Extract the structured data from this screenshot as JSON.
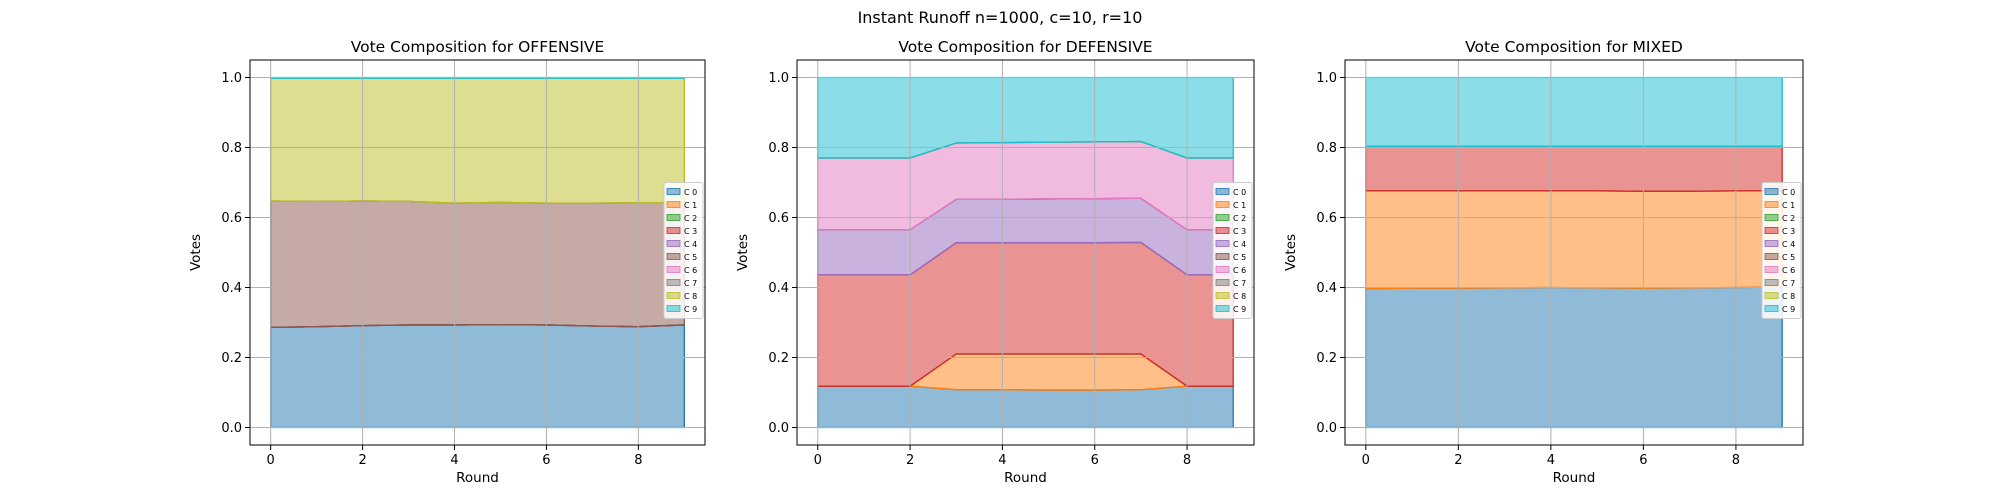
{
  "suptitle": "Instant Runoff n=1000, c=10, r=10",
  "candidate_colors": [
    "#1f77b4",
    "#ff7f0e",
    "#2ca02c",
    "#d62728",
    "#9467bd",
    "#8c564b",
    "#e377c2",
    "#7f7f7f",
    "#bcbd22",
    "#17becf"
  ],
  "chart_data": [
    {
      "type": "area",
      "title": "Vote Composition for OFFENSIVE",
      "xlabel": "Round",
      "ylabel": "Votes",
      "xlim": [
        -0.45,
        9.45
      ],
      "ylim": [
        -0.05,
        1.05
      ],
      "x_ticks": [
        0,
        2,
        4,
        6,
        8
      ],
      "y_ticks": [
        0.0,
        0.2,
        0.4,
        0.6,
        0.8,
        1.0
      ],
      "grid": true,
      "legend_position": "center-right",
      "x": [
        0,
        1,
        2,
        3,
        4,
        5,
        6,
        7,
        8,
        9
      ],
      "series": [
        {
          "name": "C 0",
          "values": [
            0.286,
            0.288,
            0.291,
            0.293,
            0.293,
            0.294,
            0.293,
            0.29,
            0.288,
            0.293
          ]
        },
        {
          "name": "C 1",
          "values": [
            0,
            0,
            0,
            0,
            0,
            0,
            0,
            0,
            0,
            0
          ]
        },
        {
          "name": "C 2",
          "values": [
            0,
            0,
            0,
            0,
            0,
            0,
            0,
            0,
            0,
            0
          ]
        },
        {
          "name": "C 3",
          "values": [
            0,
            0,
            0,
            0,
            0,
            0,
            0,
            0,
            0,
            0
          ]
        },
        {
          "name": "C 4",
          "values": [
            0,
            0,
            0,
            0,
            0,
            0,
            0,
            0,
            0,
            0
          ]
        },
        {
          "name": "C 5",
          "values": [
            0.361,
            0.358,
            0.356,
            0.353,
            0.348,
            0.349,
            0.348,
            0.351,
            0.354,
            0.349
          ]
        },
        {
          "name": "C 6",
          "values": [
            0,
            0,
            0,
            0,
            0,
            0,
            0,
            0,
            0,
            0
          ]
        },
        {
          "name": "C 7",
          "values": [
            0,
            0,
            0,
            0,
            0,
            0,
            0,
            0,
            0,
            0
          ]
        },
        {
          "name": "C 8",
          "values": [
            0.351,
            0.352,
            0.351,
            0.352,
            0.357,
            0.355,
            0.357,
            0.357,
            0.356,
            0.356
          ]
        },
        {
          "name": "C 9",
          "values": [
            0.002,
            0.002,
            0.002,
            0.002,
            0.002,
            0.002,
            0.002,
            0.002,
            0.002,
            0.002
          ]
        }
      ]
    },
    {
      "type": "area",
      "title": "Vote Composition for DEFENSIVE",
      "xlabel": "Round",
      "ylabel": "Votes",
      "xlim": [
        -0.45,
        9.45
      ],
      "ylim": [
        -0.05,
        1.05
      ],
      "x_ticks": [
        0,
        2,
        4,
        6,
        8
      ],
      "y_ticks": [
        0.0,
        0.2,
        0.4,
        0.6,
        0.8,
        1.0
      ],
      "grid": true,
      "legend_position": "center-right",
      "x": [
        0,
        1,
        2,
        3,
        4,
        5,
        6,
        7,
        8,
        9
      ],
      "series": [
        {
          "name": "C 0",
          "values": [
            0.118,
            0.118,
            0.118,
            0.108,
            0.108,
            0.107,
            0.107,
            0.108,
            0.118,
            0.118
          ]
        },
        {
          "name": "C 1",
          "values": [
            0,
            0,
            0,
            0.102,
            0.102,
            0.103,
            0.103,
            0.102,
            0,
            0
          ]
        },
        {
          "name": "C 2",
          "values": [
            0,
            0,
            0,
            0,
            0,
            0,
            0,
            0,
            0,
            0
          ]
        },
        {
          "name": "C 3",
          "values": [
            0.318,
            0.318,
            0.318,
            0.318,
            0.318,
            0.318,
            0.318,
            0.319,
            0.318,
            0.318
          ]
        },
        {
          "name": "C 4",
          "values": [
            0.129,
            0.129,
            0.129,
            0.124,
            0.124,
            0.125,
            0.126,
            0.126,
            0.129,
            0.129
          ]
        },
        {
          "name": "C 5",
          "values": [
            0,
            0,
            0,
            0,
            0,
            0,
            0,
            0,
            0,
            0
          ]
        },
        {
          "name": "C 6",
          "values": [
            0.205,
            0.205,
            0.205,
            0.161,
            0.162,
            0.162,
            0.162,
            0.162,
            0.205,
            0.205
          ]
        },
        {
          "name": "C 7",
          "values": [
            0,
            0,
            0,
            0,
            0,
            0,
            0,
            0,
            0,
            0
          ]
        },
        {
          "name": "C 8",
          "values": [
            0,
            0,
            0,
            0,
            0,
            0,
            0,
            0,
            0,
            0
          ]
        },
        {
          "name": "C 9",
          "values": [
            0.23,
            0.23,
            0.23,
            0.187,
            0.186,
            0.185,
            0.184,
            0.183,
            0.23,
            0.23
          ]
        }
      ]
    },
    {
      "type": "area",
      "title": "Vote Composition for MIXED",
      "xlabel": "Round",
      "ylabel": "Votes",
      "xlim": [
        -0.45,
        9.45
      ],
      "ylim": [
        -0.05,
        1.05
      ],
      "x_ticks": [
        0,
        2,
        4,
        6,
        8
      ],
      "y_ticks": [
        0.0,
        0.2,
        0.4,
        0.6,
        0.8,
        1.0
      ],
      "grid": true,
      "legend_position": "center-right",
      "x": [
        0,
        1,
        2,
        3,
        4,
        5,
        6,
        7,
        8,
        9
      ],
      "series": [
        {
          "name": "C 0",
          "values": [
            0.397,
            0.398,
            0.398,
            0.399,
            0.4,
            0.399,
            0.398,
            0.399,
            0.4,
            0.401
          ]
        },
        {
          "name": "C 1",
          "values": [
            0.279,
            0.278,
            0.278,
            0.277,
            0.276,
            0.277,
            0.277,
            0.276,
            0.276,
            0.275
          ]
        },
        {
          "name": "C 2",
          "values": [
            0,
            0,
            0,
            0,
            0,
            0,
            0,
            0,
            0,
            0
          ]
        },
        {
          "name": "C 3",
          "values": [
            0.127,
            0.127,
            0.127,
            0.127,
            0.127,
            0.127,
            0.128,
            0.128,
            0.127,
            0.127
          ]
        },
        {
          "name": "C 4",
          "values": [
            0,
            0,
            0,
            0,
            0,
            0,
            0,
            0,
            0,
            0
          ]
        },
        {
          "name": "C 5",
          "values": [
            0,
            0,
            0,
            0,
            0,
            0,
            0,
            0,
            0,
            0
          ]
        },
        {
          "name": "C 6",
          "values": [
            0,
            0,
            0,
            0,
            0,
            0,
            0,
            0,
            0,
            0
          ]
        },
        {
          "name": "C 7",
          "values": [
            0,
            0,
            0,
            0,
            0,
            0,
            0,
            0,
            0,
            0
          ]
        },
        {
          "name": "C 8",
          "values": [
            0,
            0,
            0,
            0,
            0,
            0,
            0,
            0,
            0,
            0
          ]
        },
        {
          "name": "C 9",
          "values": [
            0.197,
            0.197,
            0.197,
            0.197,
            0.197,
            0.197,
            0.197,
            0.197,
            0.197,
            0.197
          ]
        }
      ]
    }
  ]
}
